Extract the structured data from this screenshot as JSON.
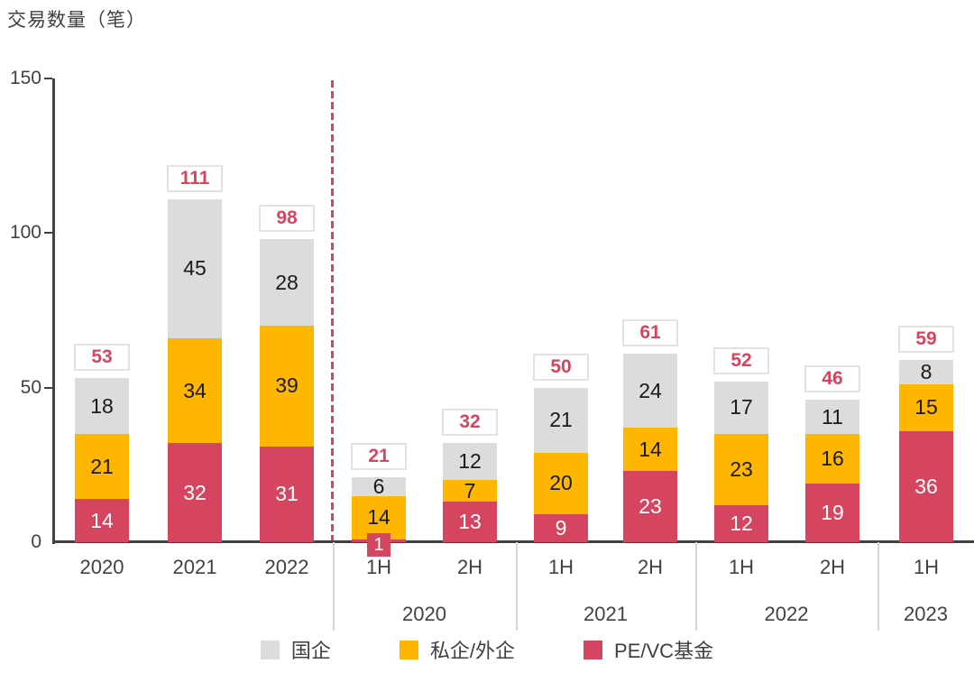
{
  "page": {
    "title": "交易数量（笔）"
  },
  "chart_data": {
    "type": "bar",
    "stacked": true,
    "title": "交易数量（笔）",
    "ylabel": "交易数量（笔）",
    "xlabel": "",
    "ylim": [
      0,
      150
    ],
    "yticks": [
      0,
      50,
      100,
      150
    ],
    "grid": false,
    "legend_position": "bottom",
    "divider": "red dashed vertical line between annual bars and half-year bars",
    "series": [
      {
        "key": "pe_vc",
        "name": "PE/VC基金",
        "color": "#d5455f",
        "label_color": "#ffffff"
      },
      {
        "key": "private_foreign",
        "name": "私企/外企",
        "color": "#ffb600",
        "label_color": "#1a1a1a"
      },
      {
        "key": "soe",
        "name": "国企",
        "color": "#dcdcdc",
        "label_color": "#1a1a1a"
      }
    ],
    "legend_order": [
      "soe",
      "private_foreign",
      "pe_vc"
    ],
    "groups": [
      {
        "label": "",
        "bars": [
          {
            "x": "2020",
            "pe_vc": 14,
            "private_foreign": 21,
            "soe": 18,
            "total": 53
          },
          {
            "x": "2021",
            "pe_vc": 32,
            "private_foreign": 34,
            "soe": 45,
            "total": 111
          },
          {
            "x": "2022",
            "pe_vc": 31,
            "private_foreign": 39,
            "soe": 28,
            "total": 98
          }
        ]
      },
      {
        "label": "2020",
        "bars": [
          {
            "x": "1H",
            "pe_vc": 1,
            "private_foreign": 14,
            "soe": 6,
            "total": 21
          },
          {
            "x": "2H",
            "pe_vc": 13,
            "private_foreign": 7,
            "soe": 12,
            "total": 32
          }
        ]
      },
      {
        "label": "2021",
        "bars": [
          {
            "x": "1H",
            "pe_vc": 9,
            "private_foreign": 20,
            "soe": 21,
            "total": 50
          },
          {
            "x": "2H",
            "pe_vc": 23,
            "private_foreign": 14,
            "soe": 24,
            "total": 61
          }
        ]
      },
      {
        "label": "2022",
        "bars": [
          {
            "x": "1H",
            "pe_vc": 12,
            "private_foreign": 23,
            "soe": 17,
            "total": 52
          },
          {
            "x": "2H",
            "pe_vc": 19,
            "private_foreign": 16,
            "soe": 11,
            "total": 46
          }
        ]
      },
      {
        "label": "2023",
        "bars": [
          {
            "x": "1H",
            "pe_vc": 36,
            "private_foreign": 15,
            "soe": 8,
            "total": 59
          }
        ]
      }
    ]
  },
  "colors": {
    "axis": "#414141",
    "total_text": "#d5455f",
    "total_border": "#e2e2e2",
    "dashed_divider": "#d5455f",
    "group_separator": "#d6d6d6",
    "background": "#ffffff"
  }
}
